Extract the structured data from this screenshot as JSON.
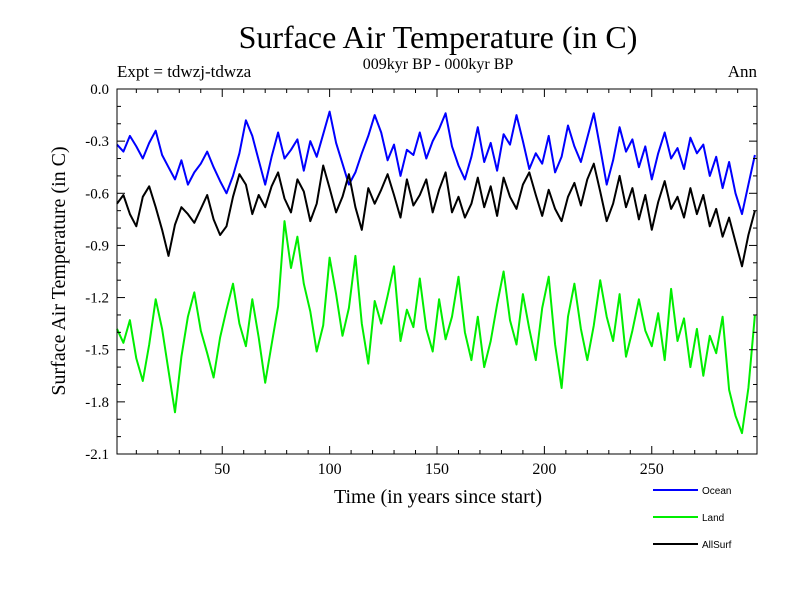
{
  "chart_data": {
    "type": "line",
    "title": "Surface Air Temperature (in C)",
    "subtitle": "009kyr BP - 000kyr BP",
    "experiment": "Expt = tdwzj-tdwza",
    "season": "Ann",
    "xlabel": "Time (in years since start)",
    "ylabel": "Surface Air Temperature (in C)",
    "xlim": [
      1,
      299
    ],
    "ylim": [
      -2.1,
      0.0
    ],
    "xticks": [
      50,
      100,
      150,
      200,
      250
    ],
    "xtick_labels": [
      "50",
      "100",
      "150",
      "200",
      "250"
    ],
    "yticks": [
      0.0,
      -0.3,
      -0.6,
      -0.9,
      -1.2,
      -1.5,
      -1.8,
      -2.1
    ],
    "ytick_labels": [
      "0.0",
      "-0.3",
      "-0.6",
      "-0.9",
      "-1.2",
      "-1.5",
      "-1.8",
      "-2.1"
    ],
    "grid": false,
    "legend_position": "bottom-right, outside plot",
    "x_start": 1,
    "x_step": 3,
    "series": [
      {
        "name": "Ocean",
        "color": "#0000ff",
        "values": [
          -0.32,
          -0.36,
          -0.27,
          -0.33,
          -0.4,
          -0.31,
          -0.24,
          -0.38,
          -0.45,
          -0.52,
          -0.41,
          -0.55,
          -0.48,
          -0.43,
          -0.36,
          -0.45,
          -0.53,
          -0.6,
          -0.5,
          -0.37,
          -0.18,
          -0.27,
          -0.41,
          -0.55,
          -0.39,
          -0.25,
          -0.4,
          -0.35,
          -0.29,
          -0.47,
          -0.3,
          -0.39,
          -0.26,
          -0.13,
          -0.31,
          -0.43,
          -0.55,
          -0.48,
          -0.37,
          -0.27,
          -0.15,
          -0.25,
          -0.41,
          -0.32,
          -0.5,
          -0.35,
          -0.38,
          -0.25,
          -0.4,
          -0.3,
          -0.23,
          -0.14,
          -0.33,
          -0.44,
          -0.52,
          -0.39,
          -0.22,
          -0.42,
          -0.31,
          -0.47,
          -0.26,
          -0.32,
          -0.15,
          -0.3,
          -0.46,
          -0.37,
          -0.43,
          -0.27,
          -0.48,
          -0.39,
          -0.21,
          -0.33,
          -0.42,
          -0.28,
          -0.14,
          -0.34,
          -0.55,
          -0.41,
          -0.22,
          -0.36,
          -0.29,
          -0.45,
          -0.33,
          -0.52,
          -0.37,
          -0.25,
          -0.4,
          -0.34,
          -0.46,
          -0.28,
          -0.37,
          -0.32,
          -0.5,
          -0.39,
          -0.57,
          -0.42,
          -0.6,
          -0.72,
          -0.55,
          -0.38
        ]
      },
      {
        "name": "Land",
        "color": "#00ee00",
        "values": [
          -1.38,
          -1.46,
          -1.33,
          -1.55,
          -1.68,
          -1.47,
          -1.21,
          -1.38,
          -1.62,
          -1.86,
          -1.54,
          -1.31,
          -1.17,
          -1.39,
          -1.52,
          -1.66,
          -1.43,
          -1.27,
          -1.12,
          -1.35,
          -1.48,
          -1.21,
          -1.43,
          -1.69,
          -1.47,
          -1.25,
          -0.76,
          -1.03,
          -0.85,
          -1.12,
          -1.28,
          -1.51,
          -1.36,
          -0.97,
          -1.18,
          -1.42,
          -1.26,
          -0.96,
          -1.35,
          -1.58,
          -1.22,
          -1.35,
          -1.19,
          -1.02,
          -1.45,
          -1.27,
          -1.37,
          -1.09,
          -1.38,
          -1.51,
          -1.21,
          -1.44,
          -1.31,
          -1.08,
          -1.4,
          -1.56,
          -1.31,
          -1.6,
          -1.45,
          -1.24,
          -1.05,
          -1.33,
          -1.47,
          -1.18,
          -1.38,
          -1.56,
          -1.26,
          -1.08,
          -1.47,
          -1.72,
          -1.31,
          -1.12,
          -1.38,
          -1.56,
          -1.36,
          -1.1,
          -1.31,
          -1.45,
          -1.18,
          -1.54,
          -1.39,
          -1.21,
          -1.39,
          -1.48,
          -1.29,
          -1.56,
          -1.15,
          -1.45,
          -1.32,
          -1.6,
          -1.38,
          -1.65,
          -1.42,
          -1.52,
          -1.31,
          -1.73,
          -1.88,
          -1.98,
          -1.72,
          -1.3
        ]
      },
      {
        "name": "AllSurf",
        "color": "#000000",
        "values": [
          -0.66,
          -0.61,
          -0.72,
          -0.79,
          -0.62,
          -0.56,
          -0.68,
          -0.81,
          -0.96,
          -0.78,
          -0.68,
          -0.72,
          -0.77,
          -0.69,
          -0.61,
          -0.75,
          -0.84,
          -0.79,
          -0.62,
          -0.49,
          -0.55,
          -0.72,
          -0.61,
          -0.68,
          -0.56,
          -0.48,
          -0.63,
          -0.71,
          -0.52,
          -0.59,
          -0.76,
          -0.66,
          -0.44,
          -0.57,
          -0.71,
          -0.62,
          -0.49,
          -0.68,
          -0.81,
          -0.57,
          -0.66,
          -0.58,
          -0.49,
          -0.61,
          -0.74,
          -0.52,
          -0.67,
          -0.61,
          -0.52,
          -0.71,
          -0.58,
          -0.48,
          -0.71,
          -0.62,
          -0.74,
          -0.66,
          -0.51,
          -0.68,
          -0.56,
          -0.73,
          -0.51,
          -0.62,
          -0.69,
          -0.55,
          -0.48,
          -0.61,
          -0.73,
          -0.58,
          -0.69,
          -0.76,
          -0.62,
          -0.54,
          -0.67,
          -0.52,
          -0.43,
          -0.59,
          -0.76,
          -0.66,
          -0.5,
          -0.68,
          -0.57,
          -0.75,
          -0.61,
          -0.81,
          -0.65,
          -0.53,
          -0.69,
          -0.62,
          -0.74,
          -0.57,
          -0.72,
          -0.61,
          -0.79,
          -0.69,
          -0.85,
          -0.74,
          -0.88,
          -1.02,
          -0.84,
          -0.7
        ]
      }
    ]
  }
}
